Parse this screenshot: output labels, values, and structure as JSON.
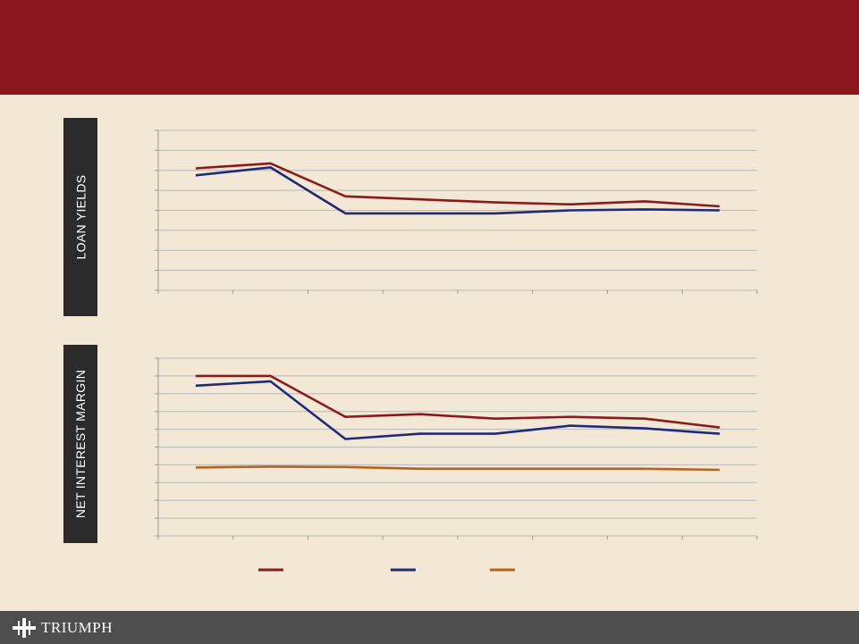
{
  "header": {
    "title": ""
  },
  "panels": {
    "loan_yields": {
      "label": "LOAN YIELDS"
    },
    "net_interest_margin": {
      "label": "NET INTEREST MARGIN"
    }
  },
  "brand": {
    "name": "TRIUMPH"
  },
  "colors": {
    "header": "#8b171c",
    "footer": "#4e4e4e",
    "background": "#f3e8d6",
    "series_red": "#8b1a1a",
    "series_blue": "#1f2a78",
    "series_orange": "#b5621b",
    "grid": "#b8b8b8"
  },
  "chart_data": [
    {
      "type": "line",
      "title": "",
      "x": [
        1,
        2,
        3,
        4,
        5,
        6,
        7,
        8
      ],
      "ylim": [
        0,
        8
      ],
      "grid": true,
      "series": [
        {
          "values": [
            6.1,
            6.35,
            4.7,
            4.55,
            4.4,
            4.3,
            4.45,
            4.2
          ]
        },
        {
          "values": [
            5.75,
            6.15,
            3.85,
            3.85,
            3.85,
            4.0,
            4.05,
            4.0
          ]
        }
      ]
    },
    {
      "type": "line",
      "title": "",
      "x": [
        1,
        2,
        3,
        4,
        5,
        6,
        7,
        8
      ],
      "ylim": [
        0,
        10
      ],
      "grid": true,
      "series": [
        {
          "values": [
            9.0,
            9.0,
            6.7,
            6.85,
            6.6,
            6.7,
            6.6,
            6.1
          ]
        },
        {
          "values": [
            8.45,
            8.7,
            5.45,
            5.75,
            5.75,
            6.2,
            6.05,
            5.75
          ]
        },
        {
          "values": [
            3.85,
            3.9,
            3.88,
            3.78,
            3.78,
            3.78,
            3.78,
            3.72
          ]
        }
      ]
    }
  ]
}
